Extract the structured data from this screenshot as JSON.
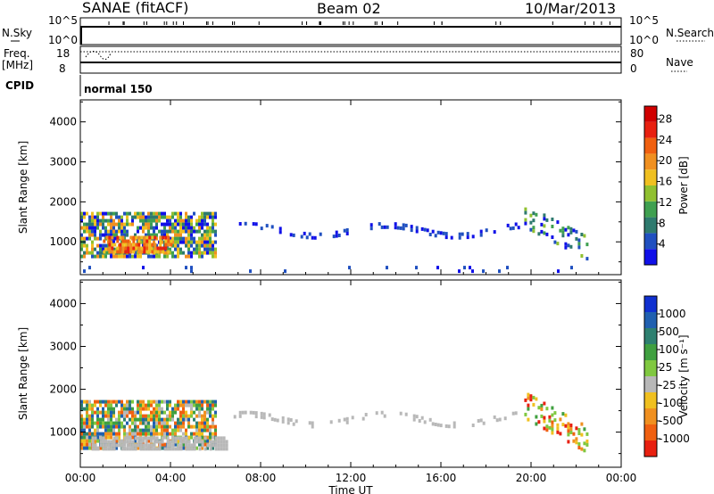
{
  "header": {
    "station": "SANAE (fitACF)",
    "beam": "Beam 02",
    "date": "10/Mar/2013"
  },
  "strips": {
    "nsky_label": "N.Sky",
    "nsearch_label": "N.Search",
    "left_ticks_counts": [
      "10^5",
      "10^0"
    ],
    "right_ticks_counts": [
      "10^5",
      "10^0"
    ],
    "freq_label": "Freq.",
    "freq_unit": "[MHz]",
    "freq_ticks": [
      "18",
      "8"
    ],
    "nave_label": "Nave",
    "nave_ticks": [
      "80",
      "0"
    ],
    "cpid_label": "CPID",
    "cpid_value": "normal 150"
  },
  "chart_data": [
    {
      "type": "heatmap",
      "name": "power-panel",
      "ylabel": "Slant Range [km]",
      "xlabel": "",
      "x_ticks": [
        "00:00",
        "04:00",
        "08:00",
        "12:00",
        "16:00",
        "20:00",
        "00:00"
      ],
      "xlim_hours": [
        0,
        24
      ],
      "y_ticks": [
        "1000",
        "2000",
        "3000",
        "4000"
      ],
      "ylim": [
        180,
        4550
      ],
      "colorbar": {
        "label": "Power [dB]",
        "ticks": [
          "4",
          "8",
          "12",
          "16",
          "20",
          "24",
          "28"
        ],
        "range": [
          0,
          30
        ],
        "colors": [
          "#1010e8",
          "#2050c0",
          "#2e7a6e",
          "#3fa050",
          "#90c030",
          "#f0c020",
          "#f09020",
          "#f06010",
          "#e82010",
          "#d00000"
        ]
      },
      "echo_regions": [
        {
          "t": [
            0.0,
            6.0
          ],
          "r": [
            620,
            1750
          ],
          "level": "mid-high"
        },
        {
          "t": [
            1.0,
            4.0
          ],
          "r": [
            750,
            1150
          ],
          "level": "high"
        },
        {
          "t": [
            6.8,
            19.5
          ],
          "r": [
            1150,
            1500
          ],
          "level": "low"
        },
        {
          "t": [
            19.7,
            22.5
          ],
          "r": [
            600,
            1950
          ],
          "level": "low-mid"
        },
        {
          "t": [
            0.0,
            24.0
          ],
          "r": [
            250,
            400
          ],
          "level": "low-scattered"
        }
      ]
    },
    {
      "type": "heatmap",
      "name": "velocity-panel",
      "ylabel": "Slant Range [km]",
      "xlabel": "Time UT",
      "x_ticks": [
        "00:00",
        "04:00",
        "08:00",
        "12:00",
        "16:00",
        "20:00",
        "00:00"
      ],
      "xlim_hours": [
        0,
        24
      ],
      "y_ticks": [
        "1000",
        "2000",
        "3000",
        "4000"
      ],
      "ylim": [
        180,
        4550
      ],
      "colorbar": {
        "label": "Velocity [m s⁻¹]",
        "ticks": [
          "1000",
          "500",
          "100",
          "25",
          "-25",
          "-100",
          "-500",
          "-1000"
        ],
        "colors": [
          "#1030d0",
          "#2060b0",
          "#2e8070",
          "#40a040",
          "#80c840",
          "#b8b8b8",
          "#f0c020",
          "#f09020",
          "#f06010",
          "#e82010"
        ]
      },
      "echo_regions": [
        {
          "t": [
            0.0,
            6.0
          ],
          "r": [
            620,
            1750
          ],
          "level": "mixed"
        },
        {
          "t": [
            0.5,
            6.5
          ],
          "r": [
            650,
            900
          ],
          "level": "ground-scatter"
        },
        {
          "t": [
            6.8,
            19.5
          ],
          "r": [
            1150,
            1500
          ],
          "level": "ground-scatter"
        },
        {
          "t": [
            19.7,
            22.5
          ],
          "r": [
            600,
            1950
          ],
          "level": "mixed-negative"
        }
      ]
    }
  ]
}
